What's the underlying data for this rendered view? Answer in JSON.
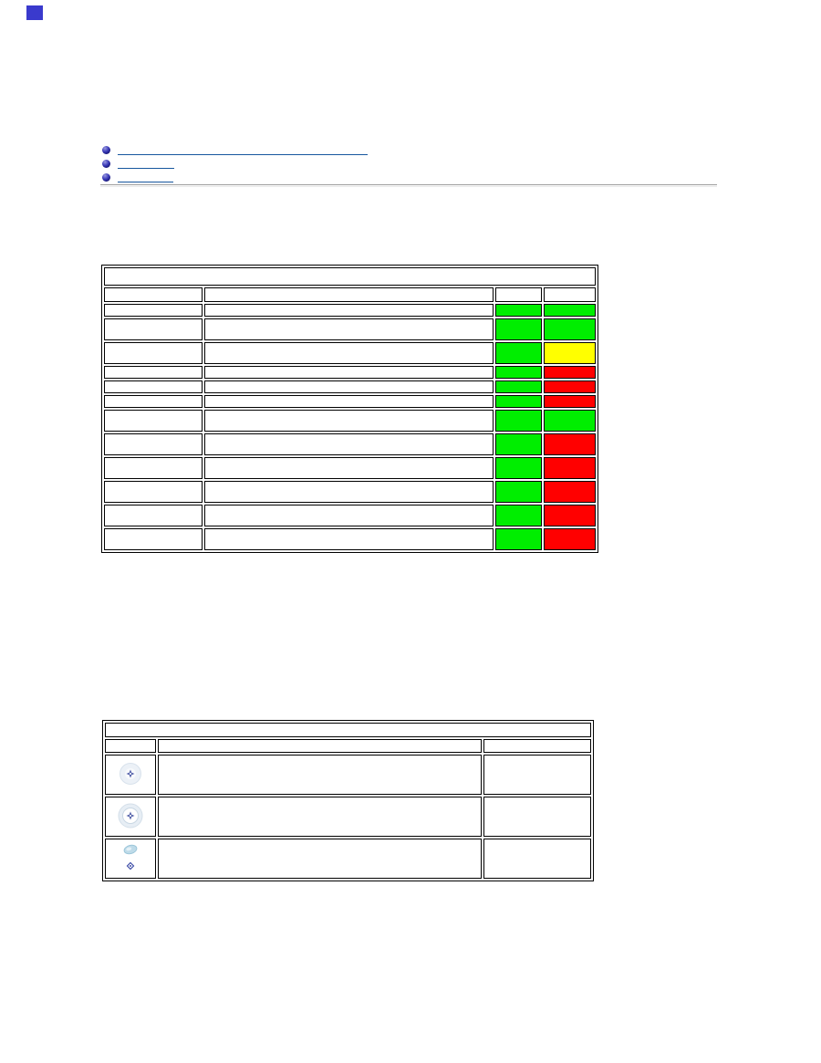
{
  "colors": {
    "green": "#00ee00",
    "yellow": "#ffff00",
    "red": "#ff0000",
    "link_blue": "#16569e",
    "bullet_navy": "#1c1c8f",
    "table_border": "#000000",
    "rule_gray": "#9c9c9c",
    "blue_square": "#3a3acd"
  },
  "nav_links": {
    "items": [
      {
        "label": "",
        "underline_width": 274
      },
      {
        "label": "",
        "underline_width": 62
      },
      {
        "label": "",
        "underline_width": 61
      }
    ]
  },
  "table1": {
    "title": "",
    "columns": [
      "",
      "",
      "",
      ""
    ],
    "rows": [
      {
        "feature": "",
        "description": "",
        "status_a": "green",
        "status_b": "green",
        "lines": 1
      },
      {
        "feature": "",
        "description": "",
        "status_a": "green",
        "status_b": "green",
        "lines": 2
      },
      {
        "feature": "",
        "description": "",
        "status_a": "green",
        "status_b": "yellow",
        "lines": 2
      },
      {
        "feature": "",
        "description": "",
        "status_a": "green",
        "status_b": "red",
        "lines": 1
      },
      {
        "feature": "",
        "description": "",
        "status_a": "green",
        "status_b": "red",
        "lines": 1
      },
      {
        "feature": "",
        "description": "",
        "status_a": "green",
        "status_b": "red",
        "lines": 1
      },
      {
        "feature": "",
        "description": "",
        "status_a": "green",
        "status_b": "green",
        "lines": 2
      },
      {
        "feature": "",
        "description": "",
        "status_a": "green",
        "status_b": "red",
        "lines": 2
      },
      {
        "feature": "",
        "description": "",
        "status_a": "green",
        "status_b": "red",
        "lines": 2
      },
      {
        "feature": "",
        "description": "",
        "status_a": "green",
        "status_b": "red",
        "lines": 2
      },
      {
        "feature": "",
        "description": "",
        "status_a": "green",
        "status_b": "red",
        "lines": 2
      },
      {
        "feature": "",
        "description": "",
        "status_a": "green",
        "status_b": "red",
        "lines": 2
      }
    ]
  },
  "table2": {
    "title": "",
    "columns": [
      "",
      "",
      ""
    ],
    "rows": [
      {
        "icon": "power-light-steady-icon",
        "description": "",
        "value": ""
      },
      {
        "icon": "power-light-ring-icon",
        "description": "",
        "value": ""
      },
      {
        "icon": "hand-power-light-icon",
        "description": "",
        "value": ""
      }
    ]
  }
}
